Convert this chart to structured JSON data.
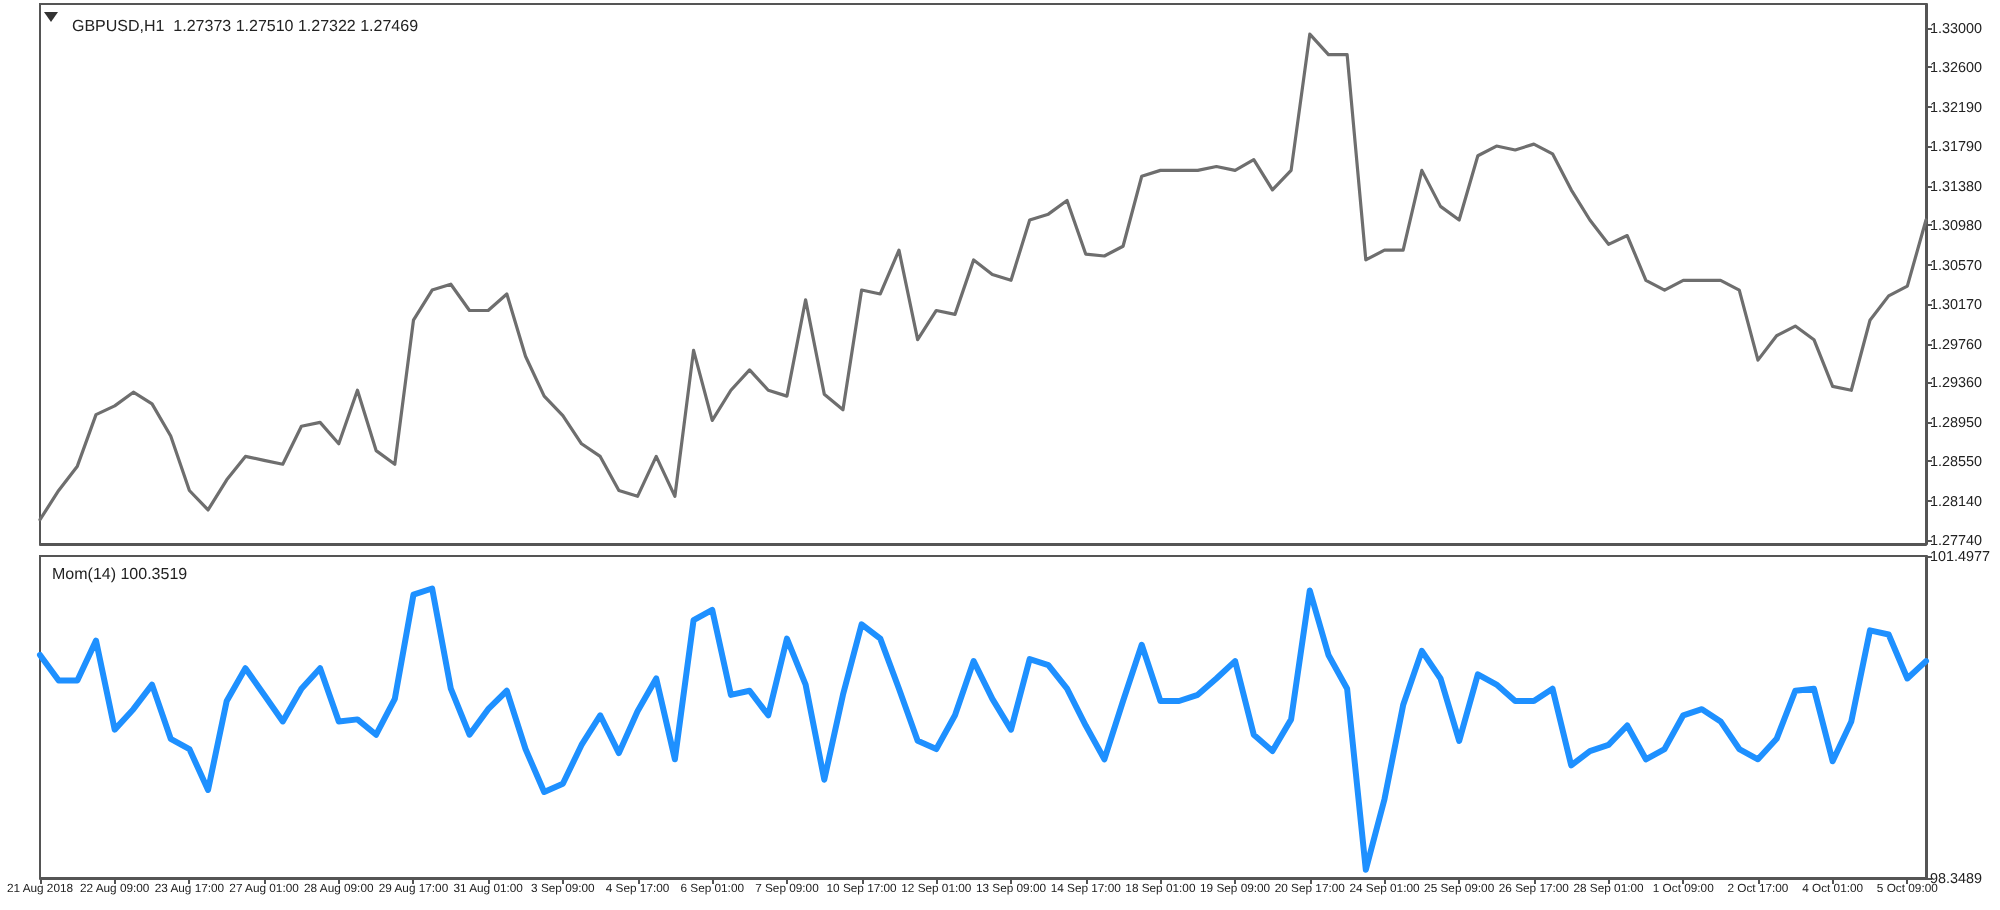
{
  "chart_data": [
    {
      "type": "line",
      "title": "GBPUSD,H1  1.27373 1.27510 1.27322 1.27469",
      "categories": [
        null,
        null,
        null,
        null,
        null,
        null,
        null,
        null,
        null,
        null,
        null,
        null,
        null,
        null,
        null,
        null,
        null,
        null,
        null,
        null,
        null,
        null,
        null,
        null,
        null,
        null,
        null,
        null,
        null,
        null,
        null,
        null,
        null,
        null,
        null,
        null,
        null,
        null,
        null,
        null,
        null,
        null,
        null,
        null,
        null,
        null,
        null,
        null,
        null,
        null,
        null,
        null,
        null,
        null,
        null,
        null,
        null,
        null,
        null,
        null,
        null,
        null,
        null,
        null,
        null,
        null,
        null,
        null,
        null,
        null,
        null,
        null,
        null,
        null,
        null,
        null,
        null,
        null,
        null,
        null,
        null,
        null,
        null,
        null,
        null,
        null,
        null,
        null,
        null,
        null,
        null,
        null,
        null,
        null,
        null,
        null,
        null,
        null,
        null,
        null,
        null,
        null
      ],
      "ylim": [
        1.277,
        1.3325
      ],
      "yticks": [
        {
          "value": 1.2774,
          "label": "1.27740"
        },
        {
          "value": 1.2814,
          "label": "1.28140"
        },
        {
          "value": 1.2855,
          "label": "1.28550"
        },
        {
          "value": 1.2895,
          "label": "1.28950"
        },
        {
          "value": 1.2936,
          "label": "1.29360"
        },
        {
          "value": 1.2976,
          "label": "1.29760"
        },
        {
          "value": 1.3017,
          "label": "1.30170"
        },
        {
          "value": 1.3057,
          "label": "1.30570"
        },
        {
          "value": 1.3098,
          "label": "1.30980"
        },
        {
          "value": 1.3138,
          "label": "1.31380"
        },
        {
          "value": 1.3179,
          "label": "1.31790"
        },
        {
          "value": 1.3219,
          "label": "1.32190"
        },
        {
          "value": 1.326,
          "label": "1.32600"
        },
        {
          "value": 1.33,
          "label": "1.33000"
        }
      ],
      "tick_labels": "y",
      "grid": false,
      "marker": "none",
      "line_style": "solid",
      "legend": false,
      "series": [
        {
          "color": "#6e6e6e",
          "values": [
            1.2795,
            1.2825,
            1.285,
            1.2903,
            1.2912,
            1.2926,
            1.2914,
            1.2881,
            1.2825,
            1.2805,
            1.2836,
            1.286,
            1.2856,
            1.2852,
            1.2891,
            1.2895,
            1.2873,
            1.2928,
            1.2866,
            1.2852,
            1.3,
            1.3031,
            1.3037,
            1.301,
            1.301,
            1.3027,
            1.2963,
            1.2922,
            1.2902,
            1.2873,
            1.286,
            1.2825,
            1.2819,
            1.286,
            1.2819,
            1.2969,
            1.2897,
            1.2928,
            1.2949,
            1.2928,
            1.2922,
            1.3021,
            1.2924,
            1.2908,
            1.3031,
            1.3027,
            1.3072,
            1.298,
            1.301,
            1.3006,
            1.3062,
            1.3047,
            1.3041,
            1.3103,
            1.3109,
            1.3123,
            1.3068,
            1.3066,
            1.3076,
            1.3148,
            1.3154,
            1.3154,
            1.3154,
            1.3158,
            1.3154,
            1.3165,
            1.3134,
            1.3154,
            1.3294,
            1.3273,
            1.3273,
            1.3062,
            1.3072,
            1.3072,
            1.3154,
            1.3117,
            1.3103,
            1.3169,
            1.3179,
            1.3175,
            1.3181,
            1.3171,
            1.3134,
            1.3103,
            1.3078,
            1.3087,
            1.3041,
            1.3031,
            1.3041,
            1.3041,
            1.3041,
            1.3031,
            1.2959,
            1.2984,
            1.2994,
            1.298,
            1.2932,
            1.2928,
            1.3,
            1.3025,
            1.3035,
            1.3103
          ]
        }
      ]
    },
    {
      "type": "line",
      "title": "Mom(14) 100.3519",
      "categories": [
        "21 Aug 2018",
        null,
        null,
        null,
        "22 Aug 09:00",
        null,
        null,
        null,
        "23 Aug 17:00",
        null,
        null,
        null,
        "27 Aug 01:00",
        null,
        null,
        null,
        "28 Aug 09:00",
        null,
        null,
        null,
        "29 Aug 17:00",
        null,
        null,
        null,
        "31 Aug 01:00",
        null,
        null,
        null,
        "3 Sep 09:00",
        null,
        null,
        null,
        "4 Sep 17:00",
        null,
        null,
        null,
        "6 Sep 01:00",
        null,
        null,
        null,
        "7 Sep 09:00",
        null,
        null,
        null,
        "10 Sep 17:00",
        null,
        null,
        null,
        "12 Sep 01:00",
        null,
        null,
        null,
        "13 Sep 09:00",
        null,
        null,
        null,
        "14 Sep 17:00",
        null,
        null,
        null,
        "18 Sep 01:00",
        null,
        null,
        null,
        "19 Sep 09:00",
        null,
        null,
        null,
        "20 Sep 17:00",
        null,
        null,
        null,
        "24 Sep 01:00",
        null,
        null,
        null,
        "25 Sep 09:00",
        null,
        null,
        null,
        "26 Sep 17:00",
        null,
        null,
        null,
        "28 Sep 01:00",
        null,
        null,
        null,
        "1 Oct 09:00",
        null,
        null,
        null,
        "2 Oct 17:00",
        null,
        null,
        null,
        "4 Oct 01:00",
        null,
        null,
        null,
        "5 Oct 09:00",
        null
      ],
      "ylim": [
        98.3489,
        101.4977
      ],
      "yticks": [
        98.3489,
        101.4977
      ],
      "grid": false,
      "marker": "none",
      "line_style": "solid",
      "legend": false,
      "series": [
        {
          "color": "#1e90ff",
          "values": [
            100.53,
            100.28,
            100.28,
            100.67,
            99.8,
            100.0,
            100.24,
            99.71,
            99.61,
            99.21,
            100.08,
            100.4,
            100.14,
            99.88,
            100.2,
            100.4,
            99.88,
            99.9,
            99.75,
            100.1,
            101.12,
            101.18,
            100.2,
            99.75,
            100.0,
            100.18,
            99.61,
            99.19,
            99.27,
            99.65,
            99.94,
            99.57,
            99.98,
            100.3,
            99.51,
            100.87,
            100.97,
            100.14,
            100.18,
            99.94,
            100.69,
            100.24,
            99.31,
            100.14,
            100.83,
            100.69,
            100.2,
            99.69,
            99.61,
            99.94,
            100.47,
            100.1,
            99.8,
            100.49,
            100.43,
            100.2,
            99.84,
            99.51,
            100.08,
            100.63,
            100.08,
            100.08,
            100.14,
            100.3,
            100.47,
            99.75,
            99.59,
            99.9,
            101.16,
            100.53,
            100.2,
            98.43,
            99.12,
            100.04,
            100.57,
            100.3,
            99.69,
            100.34,
            100.24,
            100.08,
            100.08,
            100.2,
            99.45,
            99.59,
            99.65,
            99.84,
            99.51,
            99.61,
            99.94,
            100.0,
            99.88,
            99.61,
            99.51,
            99.71,
            100.18,
            100.2,
            99.49,
            99.88,
            100.77,
            100.73,
            100.3,
            100.47
          ]
        }
      ]
    }
  ]
}
